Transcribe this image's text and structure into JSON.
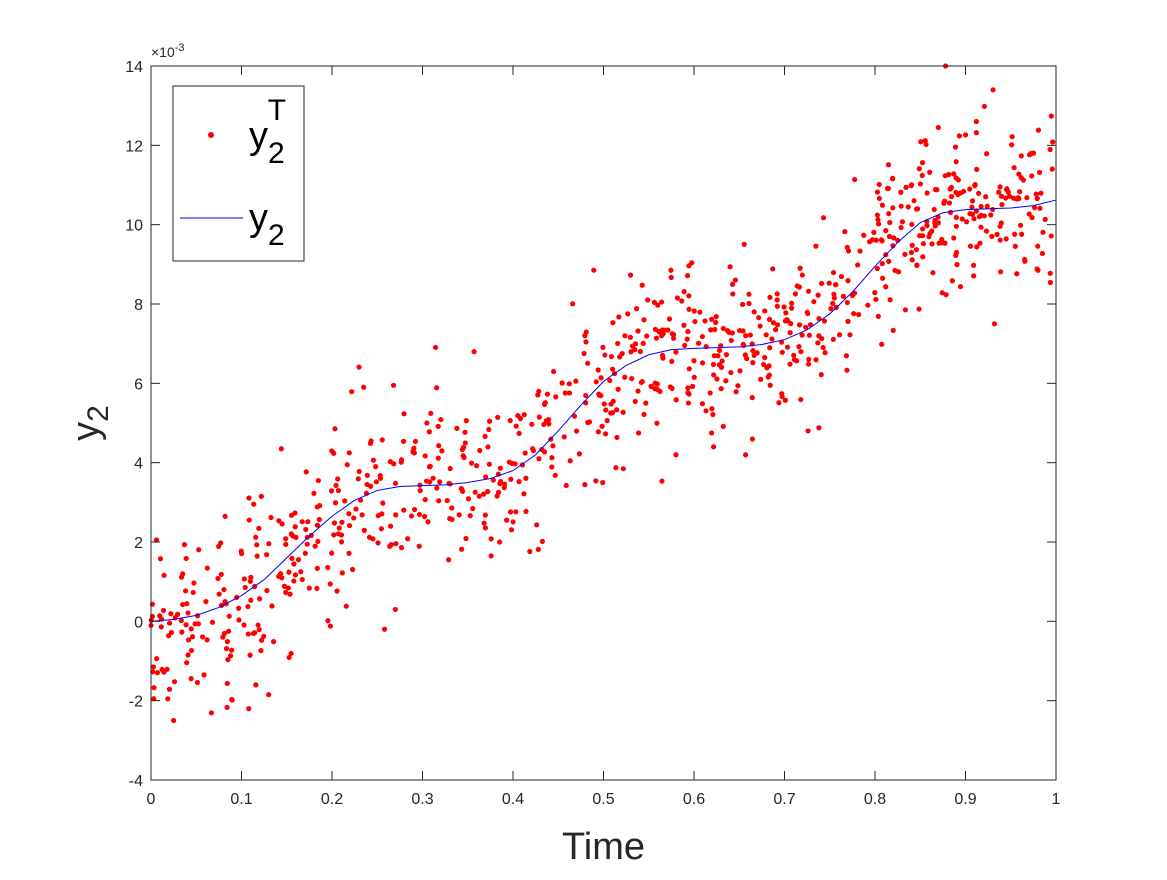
{
  "chart_data": {
    "type": "scatter",
    "xlabel": "Time",
    "ylabel": "y",
    "ylabel_sub": "2",
    "xlim": [
      0,
      1
    ],
    "ylim": [
      -4,
      14
    ],
    "y_scale_label": "×10",
    "y_scale_exponent": "-3",
    "x_ticks": [
      "0",
      "0.1",
      "0.2",
      "0.3",
      "0.4",
      "0.5",
      "0.6",
      "0.7",
      "0.8",
      "0.9",
      "1"
    ],
    "y_ticks": [
      "-4",
      "-2",
      "0",
      "2",
      "4",
      "6",
      "8",
      "10",
      "12",
      "14"
    ],
    "grid": false,
    "legend_position": "top-left",
    "legend": [
      {
        "base": "y",
        "sub": "2",
        "sup": "T",
        "marker": "dot",
        "color": "#ff0000"
      },
      {
        "base": "y",
        "sub": "2",
        "sup": "",
        "marker": "line",
        "color": "#0000ff"
      }
    ],
    "series": [
      {
        "type": "line",
        "color": "#0000ff",
        "x": [
          0,
          0.025,
          0.05,
          0.075,
          0.1,
          0.125,
          0.15,
          0.175,
          0.2,
          0.225,
          0.25,
          0.275,
          0.3,
          0.325,
          0.35,
          0.375,
          0.4,
          0.425,
          0.45,
          0.475,
          0.5,
          0.525,
          0.55,
          0.575,
          0.6,
          0.625,
          0.65,
          0.675,
          0.7,
          0.725,
          0.75,
          0.775,
          0.8,
          0.825,
          0.85,
          0.875,
          0.9,
          0.925,
          0.95,
          0.975,
          1.0
        ],
        "y": [
          0.0,
          0.05,
          0.15,
          0.35,
          0.65,
          1.05,
          1.6,
          2.15,
          2.65,
          3.05,
          3.3,
          3.4,
          3.42,
          3.44,
          3.5,
          3.6,
          3.8,
          4.2,
          4.8,
          5.45,
          6.05,
          6.45,
          6.72,
          6.85,
          6.88,
          6.9,
          6.92,
          6.98,
          7.1,
          7.35,
          7.75,
          8.3,
          8.95,
          9.55,
          10.05,
          10.3,
          10.38,
          10.4,
          10.42,
          10.48,
          10.62
        ]
      },
      {
        "type": "scatter",
        "color": "#ff0000",
        "n_points": 900,
        "noise_sd": 1.05,
        "seed": 7,
        "outliers": [
          {
            "x": 0.878,
            "y": 14.0
          },
          {
            "x": 0.025,
            "y": -2.5
          },
          {
            "x": 0.108,
            "y": -2.2
          },
          {
            "x": 0.13,
            "y": -1.85
          },
          {
            "x": 0.258,
            "y": -0.2
          },
          {
            "x": 0.27,
            "y": 0.3
          },
          {
            "x": 0.912,
            "y": 12.6
          },
          {
            "x": 0.87,
            "y": 12.45
          },
          {
            "x": 0.357,
            "y": 6.8
          },
          {
            "x": 0.235,
            "y": 5.9
          },
          {
            "x": 0.268,
            "y": 5.95
          },
          {
            "x": 0.726,
            "y": 4.8
          },
          {
            "x": 0.738,
            "y": 4.88
          },
          {
            "x": 0.657,
            "y": 4.2
          },
          {
            "x": 0.58,
            "y": 4.2
          },
          {
            "x": 0.932,
            "y": 7.5
          },
          {
            "x": 0.003,
            "y": -1.95
          },
          {
            "x": 0.006,
            "y": 2.05
          },
          {
            "x": 0.144,
            "y": 4.35
          }
        ]
      }
    ]
  }
}
